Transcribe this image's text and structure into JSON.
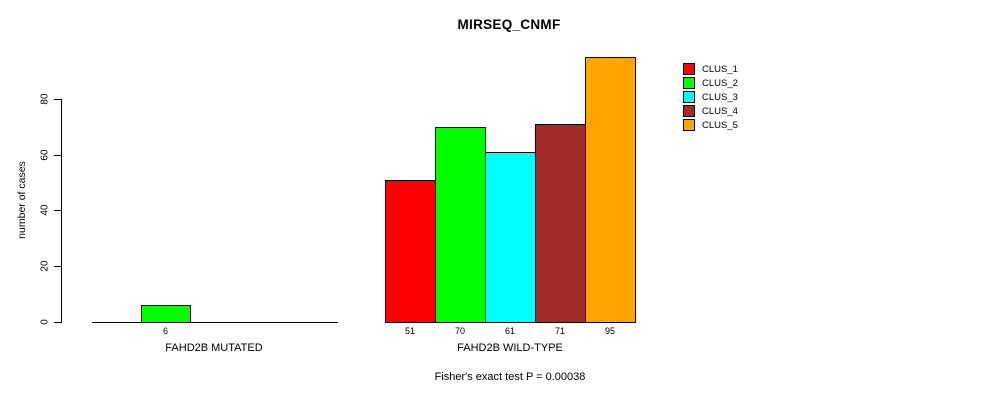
{
  "title": "MIRSEQ_CNMF",
  "y_axis": {
    "label": "number of cases",
    "tick_labels": [
      "0",
      "20",
      "40",
      "60",
      "80"
    ]
  },
  "x_groups": [
    {
      "label": "FAHD2B MUTATED"
    },
    {
      "label": "FAHD2B WILD-TYPE"
    }
  ],
  "footer": "Fisher's exact test P = 0.00038",
  "colors": {
    "background": "#FFFFFF",
    "axis": "#000000",
    "clus_1": "#FF0000",
    "clus_2": "#00FF00",
    "clus_3": "#00FFFF",
    "clus_4": "#A52A2A",
    "clus_5": "#FFA500"
  },
  "chart_data": {
    "type": "bar",
    "title": "MIRSEQ_CNMF",
    "xlabel": "",
    "ylabel": "number of cases",
    "ylim": [
      0,
      95
    ],
    "yticks": [
      0,
      20,
      40,
      60,
      80
    ],
    "grid": false,
    "legend_position": "outside-top-right",
    "categories": [
      "FAHD2B MUTATED",
      "FAHD2B WILD-TYPE"
    ],
    "series": [
      {
        "name": "CLUS_1",
        "color": "#FF0000",
        "values": [
          0,
          51
        ]
      },
      {
        "name": "CLUS_2",
        "color": "#00FF00",
        "values": [
          6,
          70
        ]
      },
      {
        "name": "CLUS_3",
        "color": "#00FFFF",
        "values": [
          0,
          61
        ]
      },
      {
        "name": "CLUS_4",
        "color": "#A52A2A",
        "values": [
          0,
          71
        ]
      },
      {
        "name": "CLUS_5",
        "color": "#FFA500",
        "values": [
          0,
          95
        ]
      }
    ],
    "bar_value_labels_shown": {
      "FAHD2B MUTATED": [
        "6"
      ],
      "FAHD2B WILD-TYPE": [
        "51",
        "70",
        "61",
        "71",
        "95"
      ]
    },
    "annotation": "Fisher's exact test P = 0.00038"
  }
}
